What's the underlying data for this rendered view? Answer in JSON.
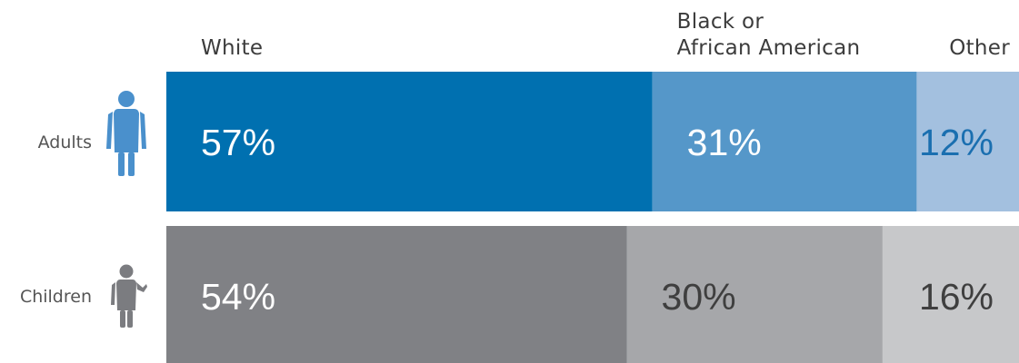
{
  "chart_data": {
    "type": "bar",
    "stacked": true,
    "orientation": "horizontal",
    "categories": [
      "White",
      "Black or African American",
      "Other"
    ],
    "category_header_lines": [
      [
        "White"
      ],
      [
        "Black or",
        "African American"
      ],
      [
        "Other"
      ]
    ],
    "rows": [
      {
        "label": "Adults",
        "icon": "woman-figure-icon",
        "values": [
          57,
          31,
          12
        ],
        "value_labels": [
          "57%",
          "31%",
          "12%"
        ],
        "colors": [
          "#0070b0",
          "#5597c9",
          "#a3c0df"
        ],
        "label_colors": [
          "#ffffff",
          "#ffffff",
          "#1a6fb0"
        ]
      },
      {
        "label": "Children",
        "icon": "child-figure-icon",
        "values": [
          54,
          30,
          16
        ],
        "value_labels": [
          "54%",
          "30%",
          "16%"
        ],
        "colors": [
          "#808185",
          "#a6a7aa",
          "#c7c8ca"
        ],
        "label_colors": [
          "#ffffff",
          "#3f3f3f",
          "#3f3f3f"
        ]
      }
    ],
    "icon_colors": [
      "#4a90cc",
      "#7b7c80"
    ],
    "xlim": [
      0,
      100
    ],
    "grid": false,
    "legend": "top"
  }
}
